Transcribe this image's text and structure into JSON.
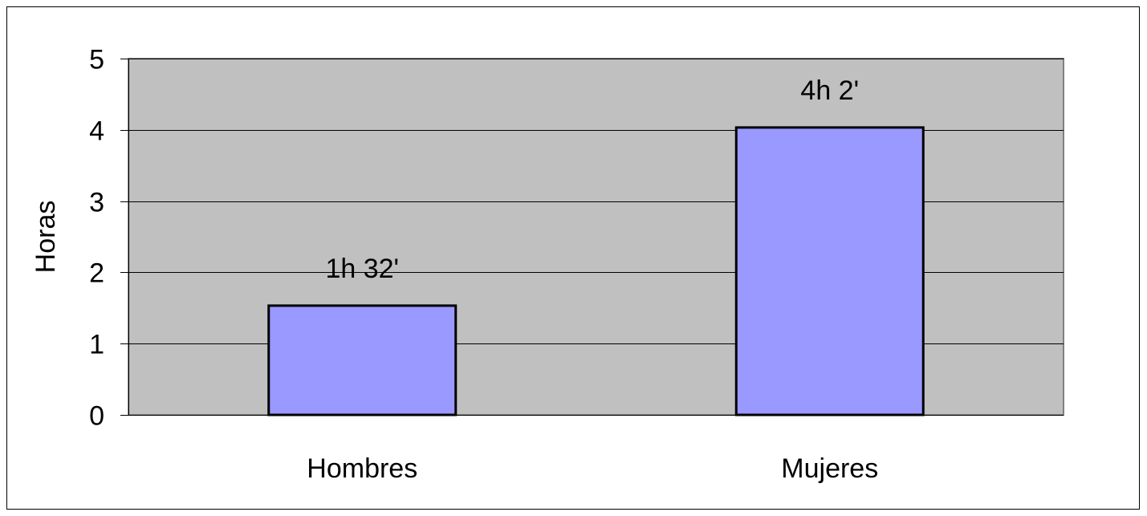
{
  "chart_data": {
    "type": "bar",
    "categories": [
      "Hombres",
      "Mujeres"
    ],
    "values": [
      1.533,
      4.033
    ],
    "data_labels": [
      "1h 32'",
      "4h 2'"
    ],
    "title": "",
    "xlabel": "",
    "ylabel": "Horas",
    "ylim": [
      0,
      5
    ],
    "yticks": [
      0,
      1,
      2,
      3,
      4,
      5
    ],
    "grid": true,
    "legend": "none",
    "colors": {
      "bar_fill": "#9999ff",
      "bar_stroke": "#000000",
      "plot_background": "#c0c0c0",
      "gridline": "#000000",
      "frame": "#000000"
    }
  }
}
